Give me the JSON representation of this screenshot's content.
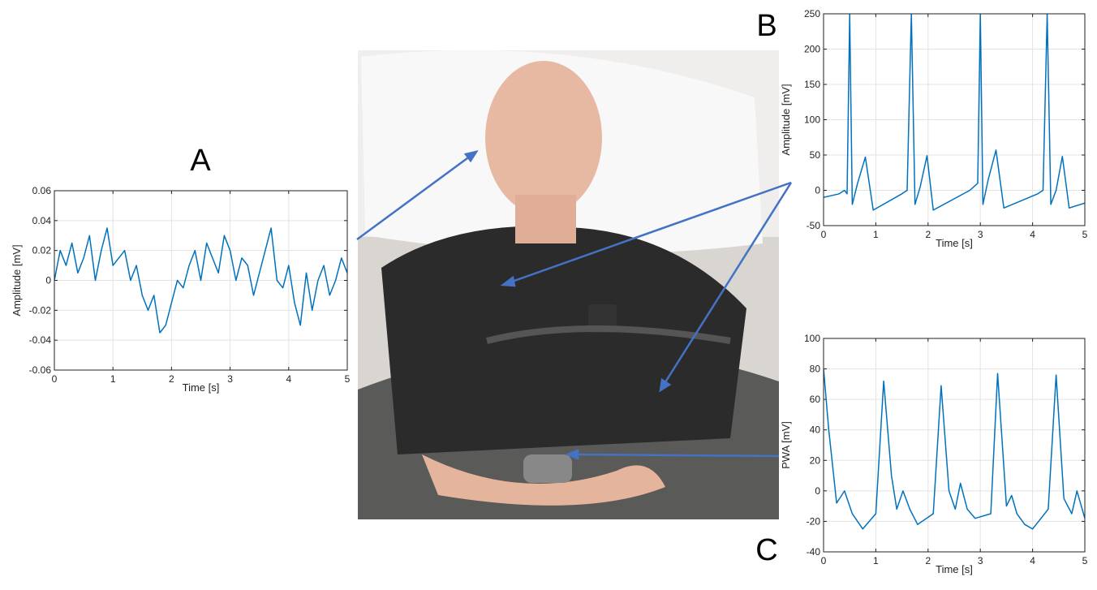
{
  "chart_data": [
    {
      "type": "line",
      "panel_label": "A",
      "xlabel": "Time [s]",
      "ylabel": "Amplitude [mV]",
      "x": [
        0,
        0.1,
        0.2,
        0.3,
        0.4,
        0.5,
        0.6,
        0.7,
        0.8,
        0.9,
        1,
        1.1,
        1.2,
        1.3,
        1.4,
        1.5,
        1.6,
        1.7,
        1.8,
        1.9,
        2,
        2.1,
        2.2,
        2.3,
        2.4,
        2.5,
        2.6,
        2.7,
        2.8,
        2.9,
        3,
        3.1,
        3.2,
        3.3,
        3.4,
        3.5,
        3.6,
        3.7,
        3.8,
        3.9,
        4,
        4.1,
        4.2,
        4.3,
        4.4,
        4.5,
        4.6,
        4.7,
        4.8,
        4.9,
        5
      ],
      "values": [
        0.0,
        0.02,
        0.01,
        0.025,
        0.005,
        0.015,
        0.03,
        0.0,
        0.02,
        0.035,
        0.01,
        0.015,
        0.02,
        0.0,
        0.01,
        -0.01,
        -0.02,
        -0.01,
        -0.035,
        -0.03,
        -0.015,
        0.0,
        -0.005,
        0.01,
        0.02,
        0.0,
        0.025,
        0.015,
        0.005,
        0.03,
        0.02,
        0.0,
        0.015,
        0.01,
        -0.01,
        0.005,
        0.02,
        0.035,
        0.0,
        -0.005,
        0.01,
        -0.015,
        -0.03,
        0.005,
        -0.02,
        0.0,
        0.01,
        -0.01,
        0.0,
        0.015,
        0.005
      ],
      "color": "#0072bd",
      "xlim": [
        0,
        5
      ],
      "xticks": [
        0,
        1,
        2,
        3,
        4,
        5
      ],
      "ylim": [
        -0.06,
        0.06
      ],
      "yticks": [
        -0.06,
        -0.04,
        -0.02,
        0,
        0.02,
        0.04,
        0.06
      ],
      "grid": true
    },
    {
      "type": "line",
      "panel_label": "B",
      "xlabel": "Time [s]",
      "ylabel": "Amplitude [mV]",
      "x": [
        0,
        0.3,
        0.4,
        0.45,
        0.5,
        0.55,
        0.65,
        0.8,
        0.95,
        1.5,
        1.6,
        1.68,
        1.75,
        1.85,
        1.98,
        2.1,
        2.8,
        2.95,
        3.0,
        3.05,
        3.15,
        3.3,
        3.45,
        4.1,
        4.2,
        4.28,
        4.35,
        4.45,
        4.57,
        4.7,
        5.0
      ],
      "values": [
        -10,
        -5,
        0,
        -5,
        250,
        -20,
        10,
        47,
        -28,
        -5,
        0,
        250,
        -20,
        5,
        49,
        -28,
        0,
        10,
        250,
        -20,
        15,
        57,
        -25,
        -5,
        0,
        250,
        -20,
        0,
        48,
        -25,
        -18
      ],
      "color": "#0072bd",
      "xlim": [
        0,
        5
      ],
      "xticks": [
        0,
        1,
        2,
        3,
        4,
        5
      ],
      "ylim": [
        -50,
        250
      ],
      "yticks": [
        -50,
        0,
        50,
        100,
        150,
        200,
        250
      ],
      "grid": true
    },
    {
      "type": "line",
      "panel_label": "C",
      "xlabel": "Time [s]",
      "ylabel": "PWA [mV]",
      "x": [
        0,
        0.1,
        0.25,
        0.4,
        0.55,
        0.75,
        1.0,
        1.15,
        1.3,
        1.4,
        1.52,
        1.65,
        1.8,
        2.1,
        2.25,
        2.4,
        2.52,
        2.62,
        2.75,
        2.9,
        3.2,
        3.33,
        3.5,
        3.6,
        3.7,
        3.85,
        4.0,
        4.3,
        4.45,
        4.6,
        4.75,
        4.85,
        5.0
      ],
      "values": [
        80,
        40,
        -8,
        0,
        -15,
        -25,
        -15,
        72,
        10,
        -12,
        0,
        -12,
        -22,
        -15,
        69,
        0,
        -12,
        5,
        -12,
        -18,
        -15,
        77,
        -10,
        -3,
        -15,
        -22,
        -25,
        -12,
        76,
        -5,
        -15,
        0,
        -18
      ],
      "color": "#0072bd",
      "xlim": [
        0,
        5
      ],
      "xticks": [
        0,
        1,
        2,
        3,
        4,
        5
      ],
      "ylim": [
        -40,
        100
      ],
      "yticks": [
        -40,
        -20,
        0,
        20,
        40,
        60,
        80,
        100
      ],
      "grid": true
    }
  ]
}
